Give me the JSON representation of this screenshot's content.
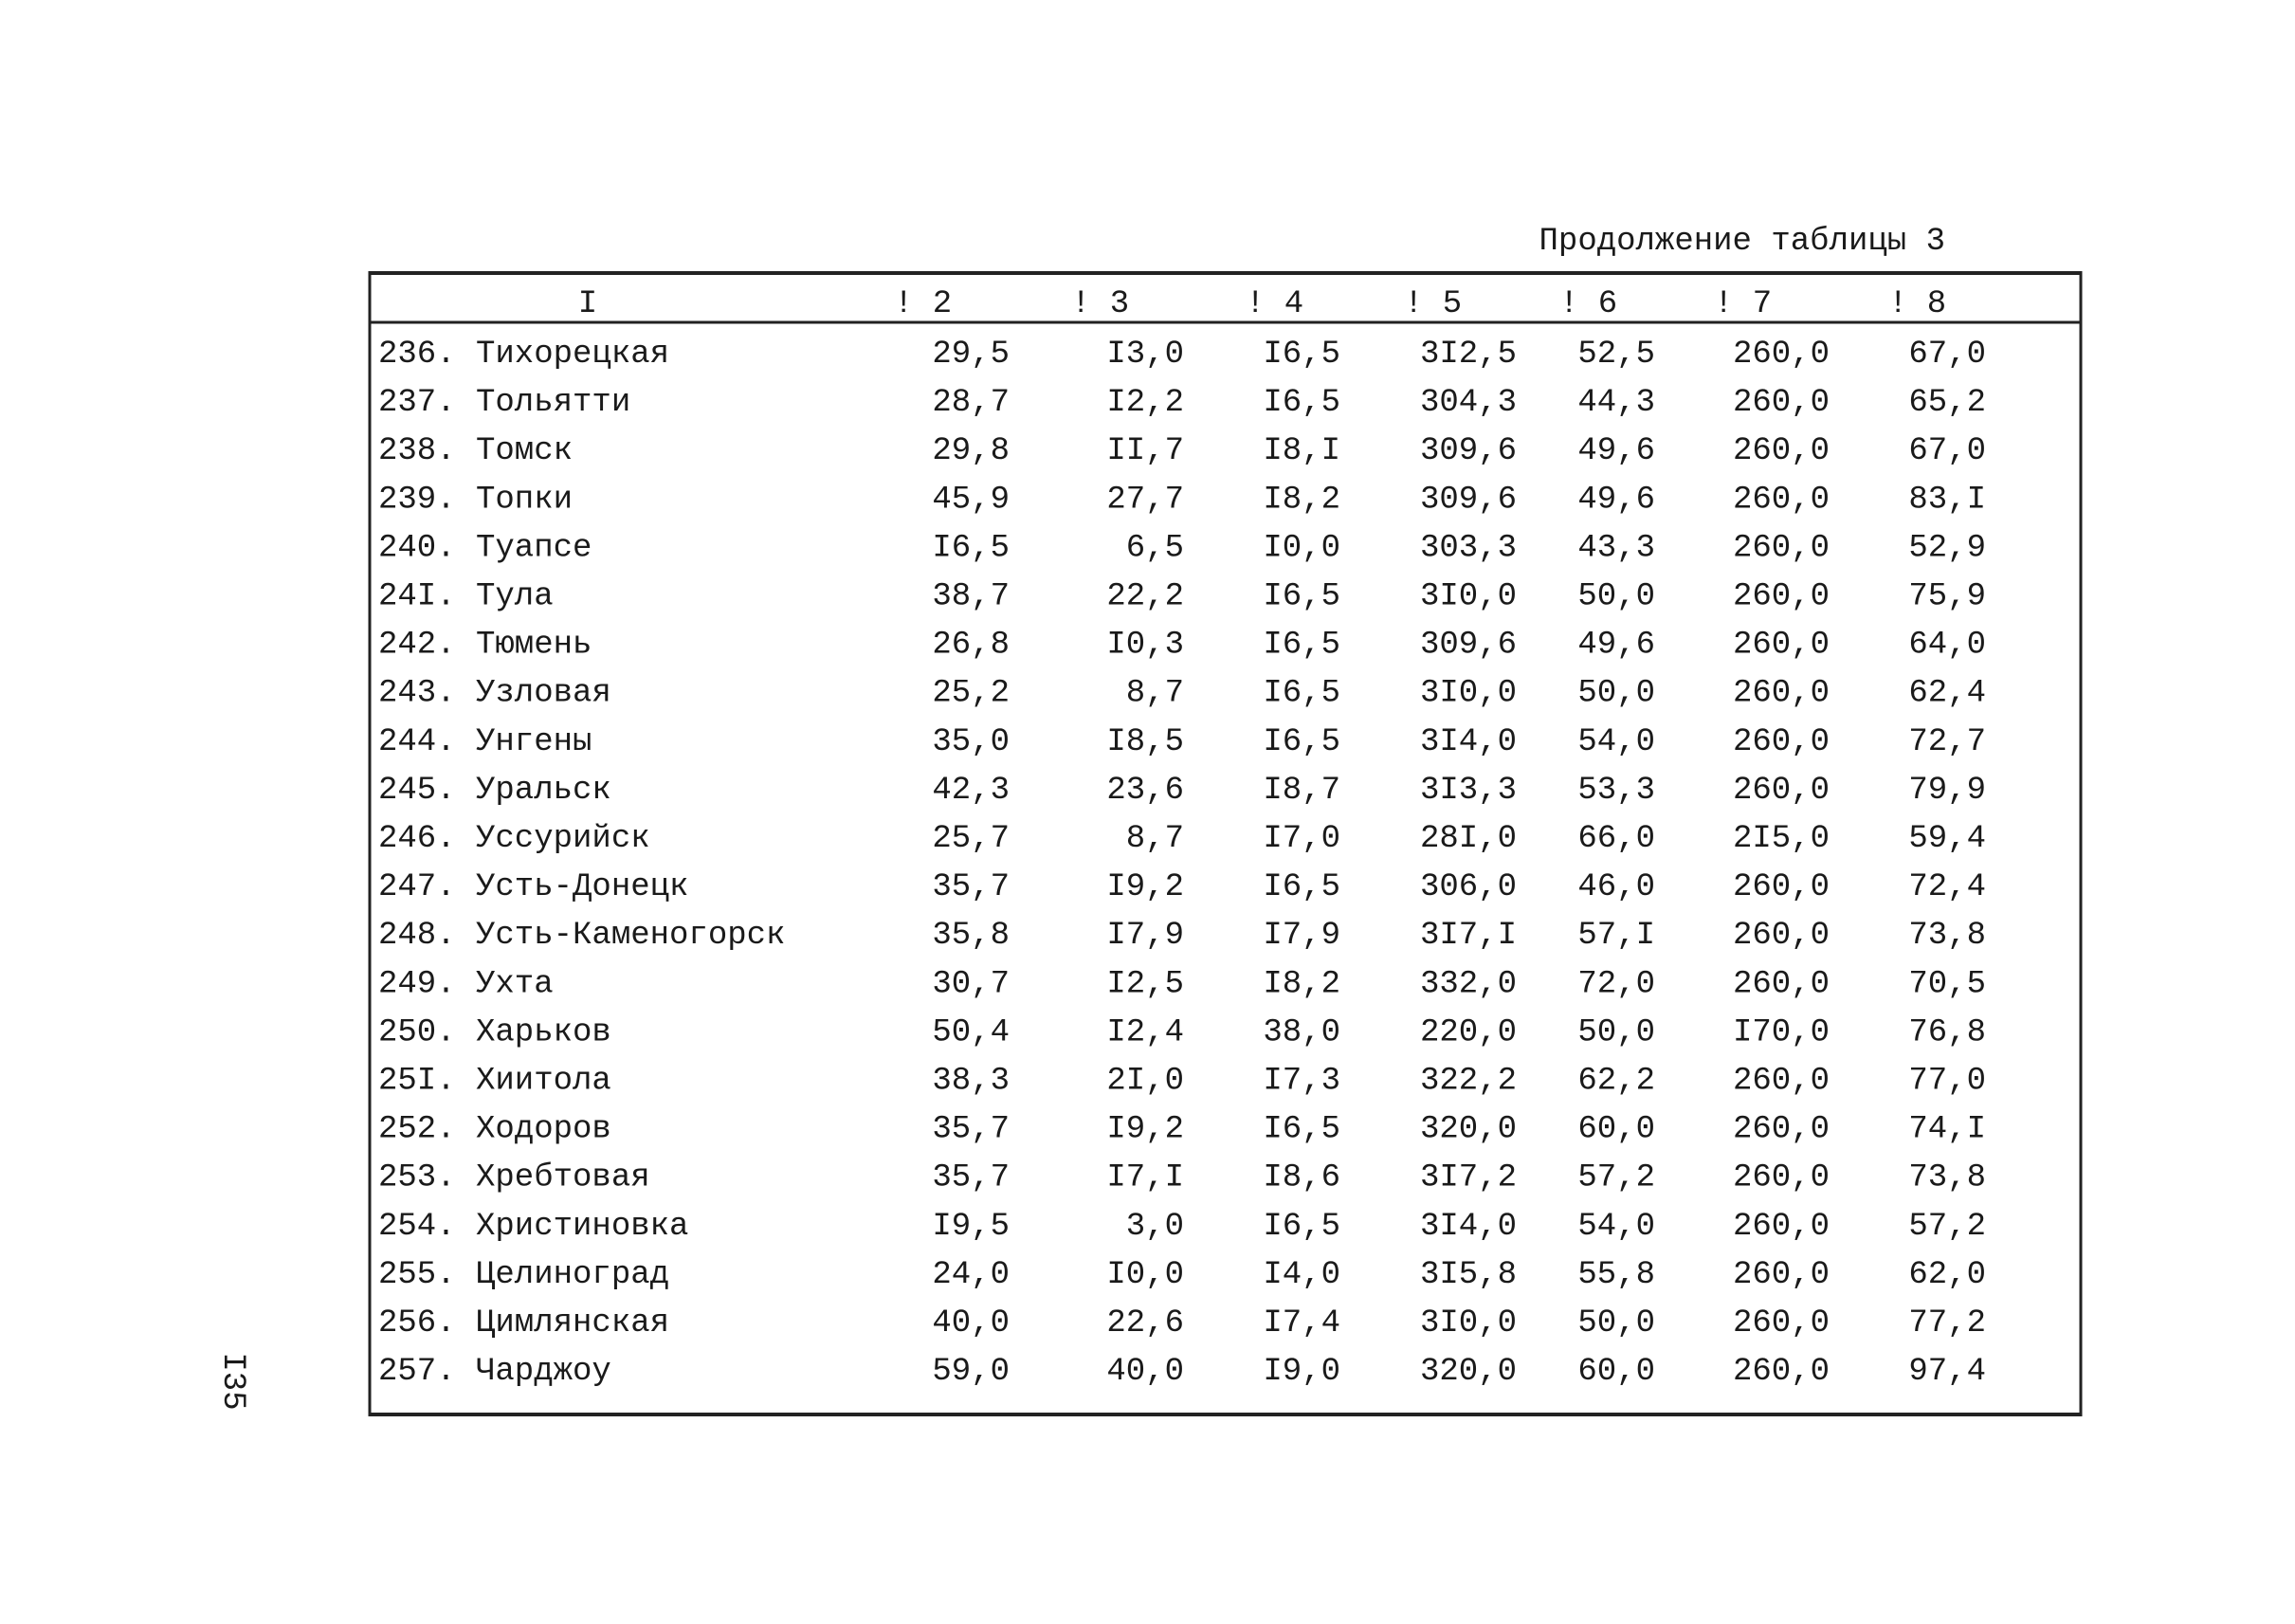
{
  "header": {
    "caption": "Продолжение таблицы 3",
    "page_number": "I35"
  },
  "table": {
    "columns": [
      "I",
      "! 2",
      "! 3",
      "! 4",
      "! 5",
      "! 6",
      "! 7",
      "! 8"
    ],
    "rows": [
      [
        "236.",
        "Тихорецкая",
        "29,5",
        "I3,0",
        "I6,5",
        "3I2,5",
        "52,5",
        "260,0",
        "67,0"
      ],
      [
        "237.",
        "Тольятти",
        "28,7",
        "I2,2",
        "I6,5",
        "304,3",
        "44,3",
        "260,0",
        "65,2"
      ],
      [
        "238.",
        "Томск",
        "29,8",
        "II,7",
        "I8,I",
        "309,6",
        "49,6",
        "260,0",
        "67,0"
      ],
      [
        "239.",
        "Топки",
        "45,9",
        "27,7",
        "I8,2",
        "309,6",
        "49,6",
        "260,0",
        "83,I"
      ],
      [
        "240.",
        "Туапсе",
        "I6,5",
        "6,5",
        "I0,0",
        "303,3",
        "43,3",
        "260,0",
        "52,9"
      ],
      [
        "24I.",
        "Тула",
        "38,7",
        "22,2",
        "I6,5",
        "3I0,0",
        "50,0",
        "260,0",
        "75,9"
      ],
      [
        "242.",
        "Тюмень",
        "26,8",
        "I0,3",
        "I6,5",
        "309,6",
        "49,6",
        "260,0",
        "64,0"
      ],
      [
        "243.",
        "Узловая",
        "25,2",
        "8,7",
        "I6,5",
        "3I0,0",
        "50,0",
        "260,0",
        "62,4"
      ],
      [
        "244.",
        "Унгены",
        "35,0",
        "I8,5",
        "I6,5",
        "3I4,0",
        "54,0",
        "260,0",
        "72,7"
      ],
      [
        "245.",
        "Уральск",
        "42,3",
        "23,6",
        "I8,7",
        "3I3,3",
        "53,3",
        "260,0",
        "79,9"
      ],
      [
        "246.",
        "Уссурийск",
        "25,7",
        "8,7",
        "I7,0",
        "28I,0",
        "66,0",
        "2I5,0",
        "59,4"
      ],
      [
        "247.",
        "Усть-Донецк",
        "35,7",
        "I9,2",
        "I6,5",
        "306,0",
        "46,0",
        "260,0",
        "72,4"
      ],
      [
        "248.",
        "Усть-Каменогорск",
        "35,8",
        "I7,9",
        "I7,9",
        "3I7,I",
        "57,I",
        "260,0",
        "73,8"
      ],
      [
        "249.",
        "Ухта",
        "30,7",
        "I2,5",
        "I8,2",
        "332,0",
        "72,0",
        "260,0",
        "70,5"
      ],
      [
        "250.",
        "Харьков",
        "50,4",
        "I2,4",
        "38,0",
        "220,0",
        "50,0",
        "I70,0",
        "76,8"
      ],
      [
        "25I.",
        "Хиитола",
        "38,3",
        "2I,0",
        "I7,3",
        "322,2",
        "62,2",
        "260,0",
        "77,0"
      ],
      [
        "252.",
        "Ходоров",
        "35,7",
        "I9,2",
        "I6,5",
        "320,0",
        "60,0",
        "260,0",
        "74,I"
      ],
      [
        "253.",
        "Хребтовая",
        "35,7",
        "I7,I",
        "I8,6",
        "3I7,2",
        "57,2",
        "260,0",
        "73,8"
      ],
      [
        "254.",
        "Христиновка",
        "I9,5",
        "3,0",
        "I6,5",
        "3I4,0",
        "54,0",
        "260,0",
        "57,2"
      ],
      [
        "255.",
        "Целиноград",
        "24,0",
        "I0,0",
        "I4,0",
        "3I5,8",
        "55,8",
        "260,0",
        "62,0"
      ],
      [
        "256.",
        "Цимлянская",
        "40,0",
        "22,6",
        "I7,4",
        "3I0,0",
        "50,0",
        "260,0",
        "77,2"
      ],
      [
        "257.",
        "Чарджоу",
        "59,0",
        "40,0",
        "I9,0",
        "320,0",
        "60,0",
        "260,0",
        "97,4"
      ]
    ]
  }
}
